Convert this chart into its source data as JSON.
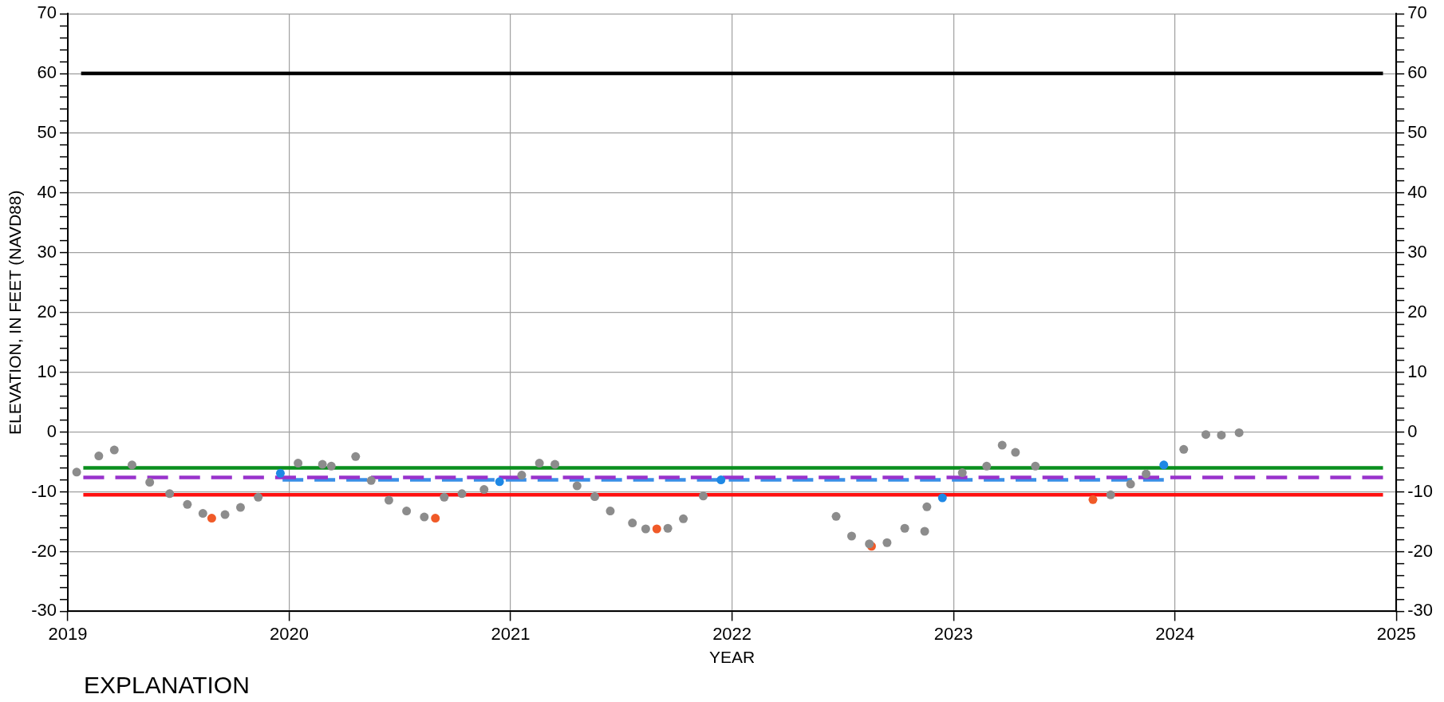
{
  "chart_data": {
    "type": "scatter",
    "xlabel": "YEAR",
    "ylabel": "ELEVATION, IN FEET (NAVD88)",
    "annotations": [
      "EXPLANATION"
    ],
    "xlim": [
      2019,
      2025
    ],
    "xticks": [
      2019,
      2020,
      2021,
      2022,
      2023,
      2024,
      2025
    ],
    "ylim": [
      -30,
      70
    ],
    "yticks": [
      -30,
      {
        "value": -28,
        "label": null
      },
      {
        "value": -26,
        "label": null
      },
      {
        "value": -24,
        "label": null
      },
      {
        "value": -22,
        "label": null
      },
      -20,
      {
        "value": -18,
        "label": null
      },
      {
        "value": -16,
        "label": null
      },
      {
        "value": -14,
        "label": null
      },
      {
        "value": -12,
        "label": null
      },
      -10,
      {
        "value": -8,
        "label": null
      },
      {
        "value": -6,
        "label": null
      },
      {
        "value": -4,
        "label": null
      },
      {
        "value": -2,
        "label": null
      },
      0,
      {
        "value": 2,
        "label": null
      },
      {
        "value": 4,
        "label": null
      },
      {
        "value": 6,
        "label": null
      },
      {
        "value": 8,
        "label": null
      },
      10,
      {
        "value": 12,
        "label": null
      },
      {
        "value": 14,
        "label": null
      },
      {
        "value": 16,
        "label": null
      },
      {
        "value": 18,
        "label": null
      },
      20,
      {
        "value": 22,
        "label": null
      },
      {
        "value": 24,
        "label": null
      },
      {
        "value": 26,
        "label": null
      },
      {
        "value": 28,
        "label": null
      },
      30,
      {
        "value": 32,
        "label": null
      },
      {
        "value": 34,
        "label": null
      },
      {
        "value": 36,
        "label": null
      },
      {
        "value": 38,
        "label": null
      },
      40,
      {
        "value": 42,
        "label": null
      },
      {
        "value": 44,
        "label": null
      },
      {
        "value": 46,
        "label": null
      },
      {
        "value": 48,
        "label": null
      },
      50,
      {
        "value": 52,
        "label": null
      },
      {
        "value": 54,
        "label": null
      },
      {
        "value": 56,
        "label": null
      },
      {
        "value": 58,
        "label": null
      },
      60,
      {
        "value": 62,
        "label": null
      },
      {
        "value": 64,
        "label": null
      },
      {
        "value": 66,
        "label": null
      },
      {
        "value": 68,
        "label": null
      },
      70
    ],
    "y2lim": [
      -30,
      70
    ],
    "y2ticks": [
      -30,
      {
        "value": -28,
        "label": null
      },
      {
        "value": -26,
        "label": null
      },
      {
        "value": -24,
        "label": null
      },
      {
        "value": -22,
        "label": null
      },
      -20,
      {
        "value": -18,
        "label": null
      },
      {
        "value": -16,
        "label": null
      },
      {
        "value": -14,
        "label": null
      },
      {
        "value": -12,
        "label": null
      },
      -10,
      {
        "value": -8,
        "label": null
      },
      {
        "value": -6,
        "label": null
      },
      {
        "value": -4,
        "label": null
      },
      {
        "value": -2,
        "label": null
      },
      0,
      {
        "value": 2,
        "label": null
      },
      {
        "value": 4,
        "label": null
      },
      {
        "value": 6,
        "label": null
      },
      {
        "value": 8,
        "label": null
      },
      10,
      {
        "value": 12,
        "label": null
      },
      {
        "value": 14,
        "label": null
      },
      {
        "value": 16,
        "label": null
      },
      {
        "value": 18,
        "label": null
      },
      20,
      {
        "value": 22,
        "label": null
      },
      {
        "value": 24,
        "label": null
      },
      {
        "value": 26,
        "label": null
      },
      {
        "value": 28,
        "label": null
      },
      30,
      {
        "value": 32,
        "label": null
      },
      {
        "value": 34,
        "label": null
      },
      {
        "value": 36,
        "label": null
      },
      {
        "value": 38,
        "label": null
      },
      40,
      {
        "value": 42,
        "label": null
      },
      {
        "value": 44,
        "label": null
      },
      {
        "value": 46,
        "label": null
      },
      {
        "value": 48,
        "label": null
      },
      50,
      {
        "value": 52,
        "label": null
      },
      {
        "value": 54,
        "label": null
      },
      {
        "value": 56,
        "label": null
      },
      {
        "value": 58,
        "label": null
      },
      60,
      {
        "value": 62,
        "label": null
      },
      {
        "value": 64,
        "label": null
      },
      {
        "value": 66,
        "label": null
      },
      {
        "value": 68,
        "label": null
      },
      70
    ],
    "grid": true,
    "series": [
      {
        "type": "line",
        "color": "#000000",
        "marker": "none",
        "line_style": "solid",
        "x": [
          2019.06,
          2024.94
        ],
        "values": [
          60,
          60
        ]
      },
      {
        "type": "line",
        "color": "#0a8f1e",
        "marker": "none",
        "line_style": "solid",
        "x": [
          2019.07,
          2024.94
        ],
        "values": [
          -6,
          -6
        ]
      },
      {
        "type": "line",
        "color": "#ff1010",
        "marker": "none",
        "line_style": "solid",
        "x": [
          2019.07,
          2024.94
        ],
        "values": [
          -10.5,
          -10.5
        ]
      },
      {
        "type": "line",
        "color": "#9933cc",
        "marker": "none",
        "line_style": "dashed",
        "x": [
          2019.07,
          2024.94
        ],
        "values": [
          -7.6,
          -7.6
        ]
      },
      {
        "type": "line",
        "color": "#3a8ee6",
        "marker": "none",
        "line_style": "dashed",
        "x": [
          2019.97,
          2023.95
        ],
        "values": [
          -8.0,
          -8.0
        ]
      },
      {
        "color": "#8c8c8c",
        "marker": "circle",
        "x": [
          2019.04,
          2019.14,
          2019.21,
          2019.29,
          2019.37,
          2019.46,
          2019.54,
          2019.61,
          2019.71,
          2019.78,
          2019.86,
          2020.04,
          2020.15,
          2020.19,
          2020.3,
          2020.37,
          2020.45,
          2020.53,
          2020.61,
          2020.7,
          2020.78,
          2020.88,
          2021.05,
          2021.13,
          2021.2,
          2021.3,
          2021.38,
          2021.45,
          2021.55,
          2021.61,
          2021.71,
          2021.78,
          2021.87,
          2022.47,
          2022.54,
          2022.62,
          2022.7,
          2022.78,
          2022.87,
          2022.88,
          2023.04,
          2023.15,
          2023.22,
          2023.28,
          2023.37,
          2023.71,
          2023.8,
          2023.87,
          2024.04,
          2024.14,
          2024.21,
          2024.29
        ],
        "values": [
          -6.7,
          -4.0,
          -3.0,
          -5.5,
          -8.4,
          -10.3,
          -12.1,
          -13.6,
          -13.8,
          -12.6,
          -10.9,
          -5.2,
          -5.4,
          -5.7,
          -4.1,
          -8.1,
          -11.4,
          -13.2,
          -14.2,
          -10.9,
          -10.3,
          -9.6,
          -7.2,
          -5.2,
          -5.4,
          -9.0,
          -10.8,
          -13.2,
          -15.2,
          -16.2,
          -16.1,
          -14.5,
          -10.7,
          -14.1,
          -17.4,
          -18.7,
          -18.5,
          -16.1,
          -16.6,
          -12.5,
          -6.8,
          -5.7,
          -2.2,
          -3.4,
          -5.7,
          -10.5,
          -8.7,
          -7.0,
          -2.9,
          -0.4,
          -0.5,
          -0.1
        ]
      },
      {
        "color": "#f05a28",
        "marker": "circle",
        "x": [
          2019.65,
          2020.66,
          2021.66,
          2022.63,
          2023.63
        ],
        "values": [
          -14.4,
          -14.4,
          -16.2,
          -19.1,
          -11.3
        ]
      },
      {
        "color": "#1e88e5",
        "marker": "circle",
        "x": [
          2019.96,
          2020.95,
          2021.95,
          2022.95,
          2023.95
        ],
        "values": [
          -6.9,
          -8.3,
          -8.0,
          -11.0,
          -5.5
        ]
      }
    ]
  }
}
